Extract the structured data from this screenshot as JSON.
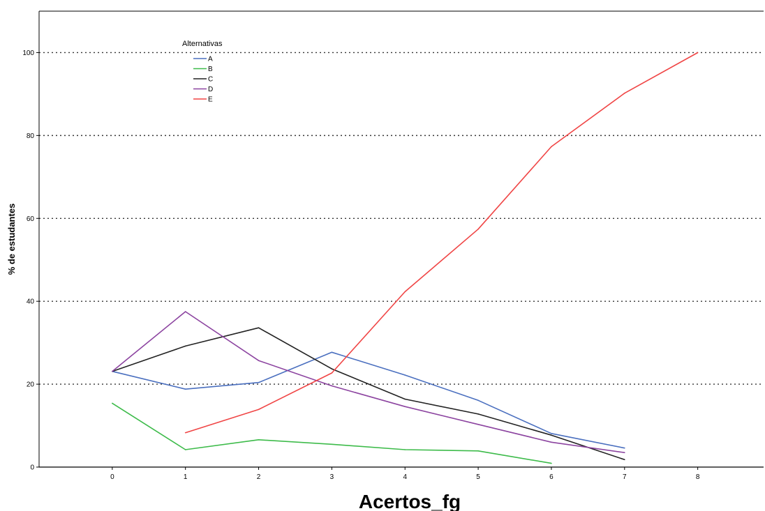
{
  "chart_data": {
    "type": "line",
    "title": "",
    "xlabel": "Acertos_fg",
    "ylabel": "% de estudantes",
    "x_ticks": [
      "0",
      "1",
      "2",
      "3",
      "4",
      "5",
      "6",
      "7",
      "8"
    ],
    "y_ticks": [
      "0",
      "20",
      "40",
      "60",
      "80",
      "100"
    ],
    "xlim": [
      -1,
      8.9
    ],
    "ylim": [
      0,
      110
    ],
    "grid": "horizontal dotted",
    "legend": {
      "title": "Alternativas",
      "placement": "top-left"
    },
    "series": [
      {
        "name": "A",
        "color": "#4a6fbf",
        "points": [
          [
            0,
            23.1
          ],
          [
            1,
            18.8
          ],
          [
            2,
            20.4
          ],
          [
            3,
            27.7
          ],
          [
            4,
            22.2
          ],
          [
            5,
            16.1
          ],
          [
            6,
            8.1
          ],
          [
            7,
            4.6
          ]
        ]
      },
      {
        "name": "B",
        "color": "#3dbb4a",
        "points": [
          [
            0,
            15.4
          ],
          [
            1,
            4.2
          ],
          [
            2,
            6.6
          ],
          [
            3,
            5.5
          ],
          [
            4,
            4.2
          ],
          [
            5,
            3.9
          ],
          [
            6,
            0.9
          ]
        ]
      },
      {
        "name": "C",
        "color": "#222222",
        "points": [
          [
            0,
            23.1
          ],
          [
            1,
            29.2
          ],
          [
            2,
            33.6
          ],
          [
            3,
            23.7
          ],
          [
            4,
            16.4
          ],
          [
            5,
            12.8
          ],
          [
            6,
            7.7
          ],
          [
            7,
            1.8
          ]
        ]
      },
      {
        "name": "D",
        "color": "#8c44a0",
        "points": [
          [
            0,
            23.1
          ],
          [
            1,
            37.5
          ],
          [
            2,
            25.7
          ],
          [
            3,
            19.6
          ],
          [
            4,
            14.6
          ],
          [
            5,
            10.3
          ],
          [
            6,
            6.0
          ],
          [
            7,
            3.5
          ]
        ]
      },
      {
        "name": "E",
        "color": "#f04545",
        "points": [
          [
            1,
            8.3
          ],
          [
            2,
            13.9
          ],
          [
            3,
            22.7
          ],
          [
            4,
            42.3
          ],
          [
            5,
            57.4
          ],
          [
            6,
            77.3
          ],
          [
            7,
            90.2
          ],
          [
            8,
            100.0
          ]
        ]
      }
    ]
  }
}
